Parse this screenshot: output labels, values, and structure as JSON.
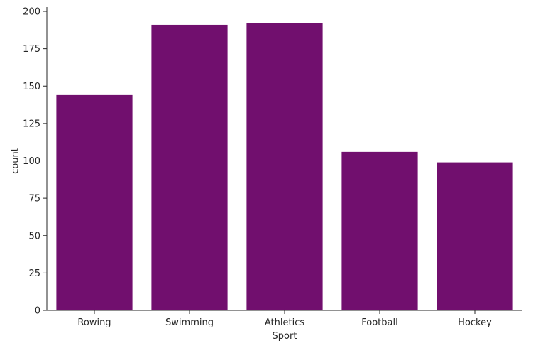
{
  "chart_data": {
    "type": "bar",
    "title": "",
    "xlabel": "Sport",
    "ylabel": "count",
    "categories": [
      "Rowing",
      "Swimming",
      "Athletics",
      "Football",
      "Hockey"
    ],
    "values": [
      144,
      191,
      192,
      106,
      99
    ],
    "ylim": [
      0,
      200
    ],
    "yticks": [
      0,
      25,
      50,
      75,
      100,
      125,
      150,
      175,
      200
    ],
    "grid": false,
    "legend": "none",
    "bar_color": "#710f6e"
  }
}
